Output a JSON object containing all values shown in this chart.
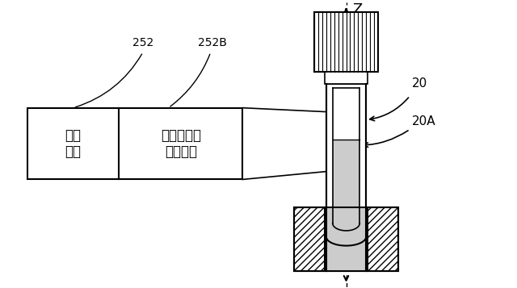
{
  "bg_color": "#ffffff",
  "line_color": "#000000",
  "box1_label": "放射\n光源",
  "box2_label": "ライン生成\n光学素子",
  "label_252": "252",
  "label_252B": "252B",
  "label_20": "20",
  "label_20A": "20A",
  "label_Z": "Z",
  "gray_fill": "#cccccc",
  "gray_light": "#e0e0e0"
}
